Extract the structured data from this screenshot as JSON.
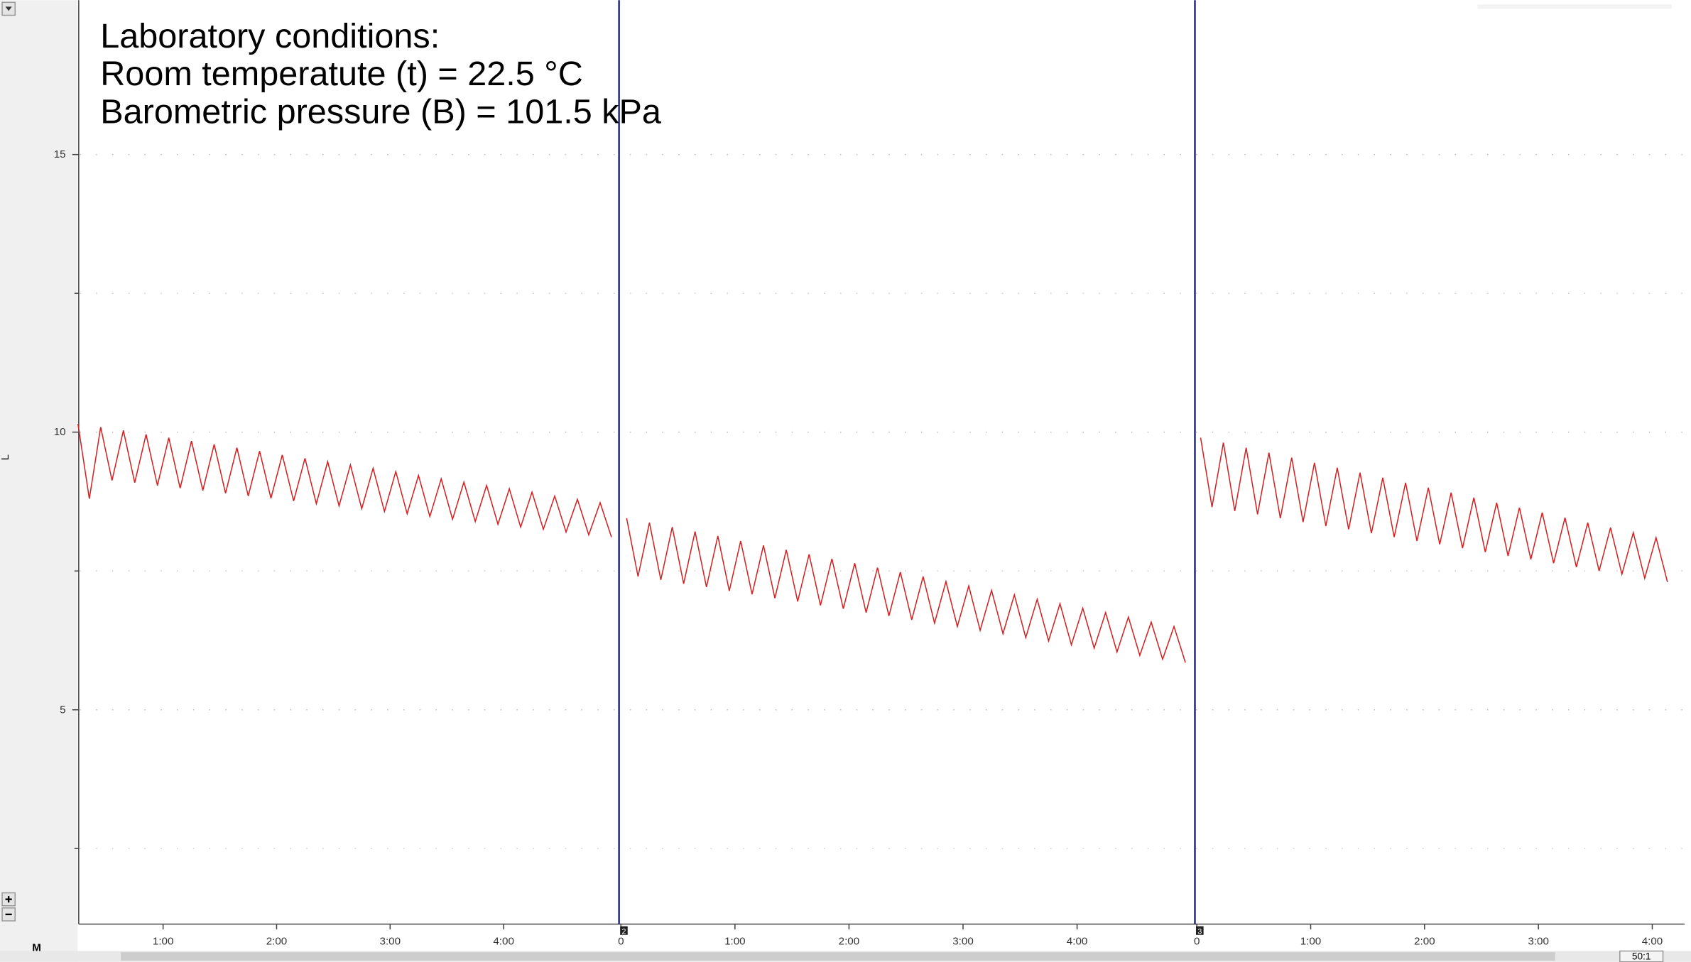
{
  "chart_data": {
    "type": "line",
    "annotations": [
      "Laboratory conditions:",
      "Room temperatute (t) = 22.5 °C",
      "Barometric pressure (B) = 101.5 kPa"
    ],
    "ylabel": "L",
    "ylim": [
      1.14,
      17.78
    ],
    "yticks": [
      5,
      10,
      15
    ],
    "yminor": [
      2.5,
      7.5,
      12.5
    ],
    "grid": true,
    "color": "#d42020",
    "blocks": [
      {
        "xlim": [
          15.4,
          301
        ],
        "xticks": [
          {
            "value": 60,
            "label": "1:00"
          },
          {
            "value": 120,
            "label": "2:00"
          },
          {
            "value": 180,
            "label": "3:00"
          },
          {
            "value": 240,
            "label": "4:00"
          }
        ],
        "x": [
          15,
          21,
          27,
          33,
          39,
          45,
          51,
          57,
          63,
          69,
          75,
          81,
          87,
          93,
          99,
          105,
          111,
          117,
          123,
          129,
          135,
          141,
          147,
          153,
          159,
          165,
          171,
          177,
          183,
          189,
          195,
          201,
          207,
          213,
          219,
          225,
          231,
          237,
          243,
          249,
          255,
          261,
          267,
          273,
          279,
          285,
          291,
          297
        ],
        "values": [
          10.15,
          8.8,
          10.09,
          9.13,
          10.03,
          9.09,
          9.96,
          9.04,
          9.9,
          8.99,
          9.84,
          8.95,
          9.78,
          8.9,
          9.72,
          8.85,
          9.66,
          8.81,
          9.59,
          8.76,
          9.53,
          8.71,
          9.47,
          8.67,
          9.41,
          8.62,
          9.35,
          8.57,
          9.29,
          8.53,
          9.22,
          8.48,
          9.16,
          8.43,
          9.1,
          8.39,
          9.04,
          8.34,
          8.98,
          8.29,
          8.92,
          8.25,
          8.85,
          8.2,
          8.79,
          8.15,
          8.73,
          8.11
        ]
      },
      {
        "marker": "2",
        "xlim": [
          -1,
          302
        ],
        "xticks": [
          0,
          {
            "value": 60,
            "label": "1:00"
          },
          {
            "value": 120,
            "label": "2:00"
          },
          {
            "value": 180,
            "label": "3:00"
          },
          {
            "value": 240,
            "label": "4:00"
          }
        ],
        "x": [
          3,
          9,
          15,
          21,
          27,
          33,
          39,
          45,
          51,
          57,
          63,
          69,
          75,
          81,
          87,
          93,
          99,
          105,
          111,
          117,
          123,
          129,
          135,
          141,
          147,
          153,
          159,
          165,
          171,
          177,
          183,
          189,
          195,
          201,
          207,
          213,
          219,
          225,
          231,
          237,
          243,
          249,
          255,
          261,
          267,
          273,
          279,
          285,
          291,
          297
        ],
        "values": [
          8.45,
          7.4,
          8.37,
          7.34,
          8.29,
          7.27,
          8.21,
          7.21,
          8.13,
          7.14,
          8.04,
          7.08,
          7.96,
          7.01,
          7.88,
          6.95,
          7.8,
          6.88,
          7.72,
          6.82,
          7.64,
          6.75,
          7.56,
          6.69,
          7.48,
          6.62,
          7.4,
          6.56,
          7.31,
          6.5,
          7.23,
          6.43,
          7.15,
          6.37,
          7.07,
          6.3,
          6.99,
          6.24,
          6.91,
          6.17,
          6.83,
          6.11,
          6.75,
          6.04,
          6.67,
          5.98,
          6.58,
          5.91,
          6.5,
          5.85
        ]
      },
      {
        "marker": "3",
        "xlim": [
          -1,
          257
        ],
        "xticks": [
          0,
          {
            "value": 60,
            "label": "1:00"
          },
          {
            "value": 120,
            "label": "2:00"
          },
          {
            "value": 180,
            "label": "3:00"
          },
          {
            "value": 240,
            "label": "4:00"
          }
        ],
        "x": [
          2,
          8,
          14,
          20,
          26,
          32,
          38,
          44,
          50,
          56,
          62,
          68,
          74,
          80,
          86,
          92,
          98,
          104,
          110,
          116,
          122,
          128,
          134,
          140,
          146,
          152,
          158,
          164,
          170,
          176,
          182,
          188,
          194,
          200,
          206,
          212,
          218,
          224,
          230,
          236,
          242,
          248
        ],
        "values": [
          9.9,
          8.65,
          9.81,
          8.58,
          9.72,
          8.52,
          9.63,
          8.45,
          9.54,
          8.38,
          9.45,
          8.31,
          9.36,
          8.25,
          9.27,
          8.18,
          9.18,
          8.11,
          9.09,
          8.04,
          9.0,
          7.98,
          8.91,
          7.91,
          8.82,
          7.84,
          8.73,
          7.77,
          8.64,
          7.71,
          8.55,
          7.64,
          8.46,
          7.57,
          8.37,
          7.5,
          8.28,
          7.44,
          8.19,
          7.37,
          8.1,
          7.3
        ]
      }
    ]
  },
  "ui": {
    "menu": "M",
    "zoom": "50:1"
  }
}
